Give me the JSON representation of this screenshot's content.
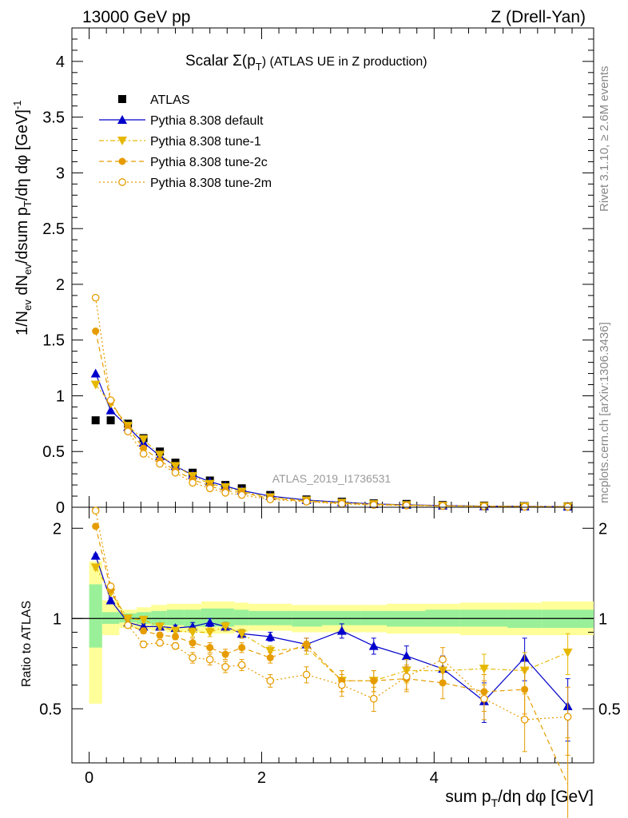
{
  "header": {
    "left": "13000 GeV pp",
    "right": "Z (Drell-Yan)"
  },
  "side_labels": {
    "rivet": "Rivet 3.1.10, ≥ 2.6M events",
    "mcplots": "mcplots.cern.ch [arXiv:1306.3436]"
  },
  "watermark": "ATLAS_2019_I1736531",
  "chart_data": [
    {
      "type": "scatter",
      "title": "Scalar Σ(pT) (ATLAS UE in Z production)",
      "title_main": "Scalar Σ(p",
      "title_sub": "T",
      "title_tail": ") (ATLAS UE in Z production)",
      "xlabel": "sum pT/dη dφ [GeV]",
      "ylabel": "1/Nev dNev/dsum pT/dη dφ [GeV]^-1",
      "xlim": [
        -0.2,
        5.85
      ],
      "ylim": [
        0,
        4.3
      ],
      "xticks": [
        "0",
        "2",
        "4"
      ],
      "xtick_values": [
        0,
        2,
        4
      ],
      "yticks": [
        "0",
        "0.5",
        "1",
        "1.5",
        "2",
        "2.5",
        "3",
        "3.5",
        "4"
      ],
      "ytick_values": [
        0,
        0.5,
        1,
        1.5,
        2,
        2.5,
        3,
        3.5,
        4
      ],
      "legend_position": "top-left",
      "x": [
        0.075,
        0.25,
        0.45,
        0.63,
        0.82,
        1.0,
        1.2,
        1.4,
        1.58,
        1.77,
        2.1,
        2.52,
        2.93,
        3.3,
        3.68,
        4.1,
        4.58,
        5.05,
        5.55
      ],
      "series": [
        {
          "name": "ATLAS",
          "color": "#000000",
          "values": [
            0.78,
            0.78,
            0.75,
            0.62,
            0.5,
            0.4,
            0.31,
            0.24,
            0.2,
            0.17,
            0.11,
            0.07,
            0.05,
            0.035,
            0.03,
            0.02,
            0.015,
            0.01,
            0.008
          ]
        },
        {
          "name": "Pythia 8.308 default",
          "color": "#0000cc",
          "values": [
            1.2,
            0.87,
            0.72,
            0.58,
            0.46,
            0.37,
            0.29,
            0.23,
            0.19,
            0.15,
            0.1,
            0.065,
            0.045,
            0.03,
            0.022,
            0.015,
            0.01,
            0.008,
            0.006
          ]
        },
        {
          "name": "Pythia 8.308 tune-1",
          "color": "#e6b800",
          "values": [
            1.1,
            0.93,
            0.73,
            0.61,
            0.47,
            0.37,
            0.28,
            0.21,
            0.18,
            0.14,
            0.09,
            0.06,
            0.04,
            0.028,
            0.02,
            0.013,
            0.01,
            0.007,
            0.005
          ]
        },
        {
          "name": "Pythia 8.308 tune-2c",
          "color": "#e69c00",
          "values": [
            1.58,
            0.95,
            0.71,
            0.53,
            0.42,
            0.33,
            0.25,
            0.19,
            0.15,
            0.13,
            0.08,
            0.055,
            0.035,
            0.025,
            0.018,
            0.012,
            0.009,
            0.006,
            0.004
          ]
        },
        {
          "name": "Pythia 8.308 tune-2m",
          "color": "#e69c00",
          "values": [
            1.88,
            0.96,
            0.68,
            0.48,
            0.39,
            0.31,
            0.22,
            0.17,
            0.13,
            0.11,
            0.07,
            0.05,
            0.03,
            0.02,
            0.016,
            0.012,
            0.008,
            0.005,
            0.004
          ]
        }
      ]
    },
    {
      "type": "scatter",
      "ylabel": "Ratio to ATLAS",
      "xlabel": "sum pT/dη dφ [GeV]",
      "xlim": [
        -0.2,
        5.85
      ],
      "ylim": [
        0.33,
        2.35
      ],
      "yticks": [
        "0.5",
        "1",
        "2"
      ],
      "ytick_values": [
        0.5,
        1,
        2
      ],
      "x": [
        0.075,
        0.25,
        0.45,
        0.63,
        0.82,
        1.0,
        1.2,
        1.4,
        1.58,
        1.77,
        2.1,
        2.52,
        2.93,
        3.3,
        3.68,
        4.1,
        4.58,
        5.05,
        5.55
      ],
      "bins": [
        0,
        0.15,
        0.35,
        0.55,
        0.72,
        0.9,
        1.1,
        1.3,
        1.5,
        1.68,
        1.85,
        2.35,
        2.7,
        3.15,
        3.45,
        3.9,
        4.3,
        4.85,
        5.25,
        5.85
      ],
      "band_inner": [
        [
          0.8,
          1.3
        ],
        [
          0.96,
          1.05
        ],
        [
          0.97,
          1.04
        ],
        [
          0.96,
          1.05
        ],
        [
          0.95,
          1.06
        ],
        [
          0.95,
          1.07
        ],
        [
          0.94,
          1.07
        ],
        [
          0.94,
          1.08
        ],
        [
          0.94,
          1.08
        ],
        [
          0.95,
          1.07
        ],
        [
          0.95,
          1.06
        ],
        [
          0.94,
          1.06
        ],
        [
          0.95,
          1.06
        ],
        [
          0.95,
          1.06
        ],
        [
          0.94,
          1.06
        ],
        [
          0.94,
          1.07
        ],
        [
          0.94,
          1.07
        ],
        [
          0.93,
          1.07
        ],
        [
          0.93,
          1.07
        ]
      ],
      "band_outer": [
        [
          0.52,
          1.55
        ],
        [
          0.88,
          1.15
        ],
        [
          0.93,
          1.07
        ],
        [
          0.92,
          1.09
        ],
        [
          0.91,
          1.11
        ],
        [
          0.9,
          1.12
        ],
        [
          0.9,
          1.12
        ],
        [
          0.89,
          1.14
        ],
        [
          0.89,
          1.14
        ],
        [
          0.9,
          1.13
        ],
        [
          0.91,
          1.12
        ],
        [
          0.9,
          1.11
        ],
        [
          0.9,
          1.11
        ],
        [
          0.9,
          1.11
        ],
        [
          0.89,
          1.12
        ],
        [
          0.89,
          1.12
        ],
        [
          0.88,
          1.13
        ],
        [
          0.88,
          1.13
        ],
        [
          0.88,
          1.14
        ]
      ],
      "series": [
        {
          "name": "Pythia 8.308 default",
          "color": "#0000cc",
          "values": [
            1.62,
            1.15,
            0.97,
            0.94,
            0.94,
            0.93,
            0.94,
            0.97,
            0.94,
            0.89,
            0.87,
            0.82,
            0.91,
            0.81,
            0.75,
            0.68,
            0.53,
            0.74,
            0.51
          ],
          "errors": [
            0.02,
            0.02,
            0.02,
            0.02,
            0.02,
            0.02,
            0.03,
            0.03,
            0.03,
            0.03,
            0.03,
            0.04,
            0.05,
            0.05,
            0.06,
            0.07,
            0.08,
            0.12,
            0.12
          ]
        },
        {
          "name": "Pythia 8.308 tune-1",
          "color": "#e6b800",
          "values": [
            1.48,
            1.22,
            1.0,
            0.99,
            0.94,
            0.91,
            0.9,
            0.9,
            0.94,
            0.89,
            0.78,
            0.8,
            0.62,
            0.62,
            0.67,
            0.67,
            0.68,
            0.67,
            0.77
          ],
          "errors": [
            0.02,
            0.02,
            0.02,
            0.02,
            0.02,
            0.02,
            0.03,
            0.03,
            0.03,
            0.03,
            0.03,
            0.04,
            0.05,
            0.05,
            0.06,
            0.07,
            0.08,
            0.1,
            0.12
          ]
        },
        {
          "name": "Pythia 8.308 tune-2c",
          "color": "#e69c00",
          "values": [
            2.03,
            1.25,
            0.95,
            0.91,
            0.88,
            0.87,
            0.83,
            0.8,
            0.76,
            0.8,
            0.74,
            0.82,
            0.62,
            0.62,
            0.63,
            0.61,
            0.57,
            0.58,
            0.28
          ],
          "errors": [
            0.02,
            0.02,
            0.02,
            0.02,
            0.02,
            0.02,
            0.03,
            0.03,
            0.03,
            0.03,
            0.03,
            0.04,
            0.05,
            0.05,
            0.06,
            0.07,
            0.08,
            0.1,
            0.12
          ]
        },
        {
          "name": "Pythia 8.308 tune-2m",
          "color": "#e69c00",
          "values": [
            2.29,
            1.28,
            0.95,
            0.82,
            0.83,
            0.81,
            0.74,
            0.73,
            0.69,
            0.7,
            0.62,
            0.65,
            0.6,
            0.54,
            0.64,
            0.73,
            0.54,
            0.46,
            0.47
          ],
          "errors": [
            0.02,
            0.02,
            0.02,
            0.02,
            0.02,
            0.02,
            0.03,
            0.03,
            0.03,
            0.03,
            0.03,
            0.04,
            0.05,
            0.05,
            0.06,
            0.07,
            0.08,
            0.1,
            0.12
          ]
        }
      ]
    }
  ]
}
